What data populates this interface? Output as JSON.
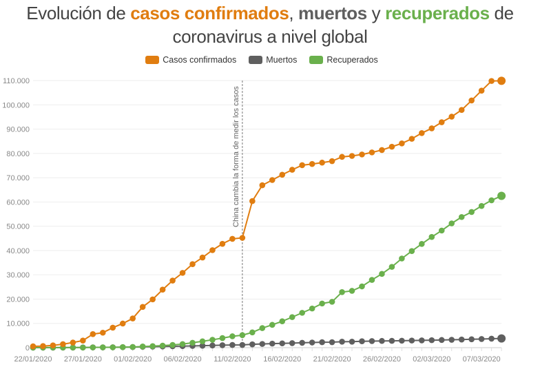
{
  "title": {
    "part1": "Evolución de ",
    "casos": "casos confirmados",
    "sep": ", ",
    "muertos": "muertos",
    "y": " y ",
    "recuperados": "recuperados",
    "part2": " de",
    "line2": "coronavirus a nivel global"
  },
  "colors": {
    "confirmados": "#e07d10",
    "muertos": "#5f5f5f",
    "recuperados": "#6ab04c"
  },
  "chart_data": {
    "type": "line",
    "title": "Evolución de casos confirmados, muertos y recuperados de coronavirus a nivel global",
    "xlabel": "",
    "ylabel": "",
    "ylim": [
      0,
      110000
    ],
    "yticks": [
      "0",
      "10.000",
      "20.000",
      "30.000",
      "40.000",
      "50.000",
      "60.000",
      "70.000",
      "80.000",
      "90.000",
      "100.000",
      "110.000"
    ],
    "xtick_labels": [
      "22/01/2020",
      "27/01/2020",
      "01/02/2020",
      "06/02/2020",
      "11/02/2020",
      "16/02/2020",
      "21/02/2020",
      "26/02/2020",
      "02/03/2020",
      "07/03/2020"
    ],
    "x_start": "22/01/2020",
    "x_end": "08/03/2020",
    "legend_position": "top",
    "annotation": {
      "text": "China cambia la forma de medir los casos",
      "x_index": 21
    },
    "series": [
      {
        "name": "Casos confirmados",
        "key": "confirmados",
        "values": [
          555,
          654,
          941,
          1434,
          2118,
          2927,
          5578,
          6166,
          8234,
          9927,
          12038,
          16787,
          19881,
          23892,
          27635,
          30794,
          34391,
          37120,
          40150,
          42762,
          44802,
          45221,
          60368,
          66885,
          69030,
          71224,
          73258,
          75136,
          75639,
          76197,
          76819,
          78572,
          78958,
          79561,
          80406,
          81388,
          82746,
          84112,
          86011,
          88369,
          90306,
          92840,
          95120,
          97886,
          101801,
          105847,
          109821,
          109900
        ]
      },
      {
        "name": "Muertos",
        "key": "muertos",
        "values": [
          17,
          18,
          26,
          42,
          56,
          82,
          131,
          133,
          171,
          213,
          259,
          362,
          426,
          492,
          564,
          634,
          719,
          806,
          906,
          1013,
          1113,
          1118,
          1371,
          1523,
          1666,
          1770,
          1868,
          2007,
          2122,
          2247,
          2251,
          2458,
          2469,
          2629,
          2708,
          2770,
          2814,
          2872,
          2941,
          2996,
          3085,
          3160,
          3254,
          3348,
          3460,
          3558,
          3700,
          3800
        ]
      },
      {
        "name": "Recuperados",
        "key": "recuperados",
        "values": [
          28,
          30,
          36,
          39,
          52,
          61,
          107,
          126,
          143,
          222,
          284,
          472,
          623,
          852,
          1124,
          1487,
          2011,
          2616,
          3244,
          3946,
          4683,
          5150,
          6295,
          8058,
          9395,
          10865,
          12583,
          14352,
          16121,
          18177,
          18890,
          22886,
          23394,
          25227,
          27905,
          30384,
          33277,
          36711,
          39782,
          42716,
          45602,
          48228,
          51170,
          53796,
          55866,
          58359,
          60694,
          62500
        ]
      }
    ]
  }
}
